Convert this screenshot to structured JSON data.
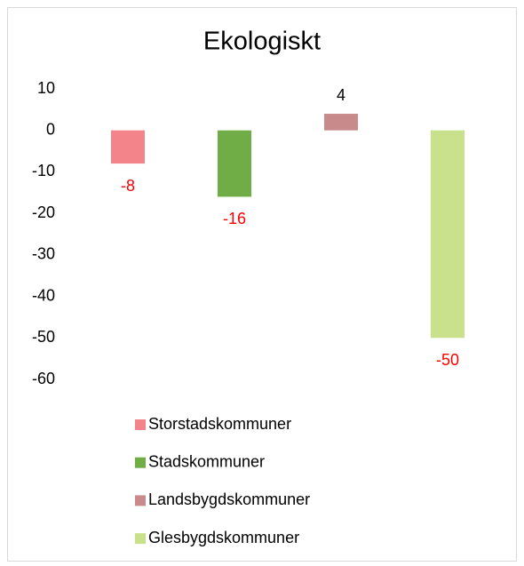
{
  "chart_data": {
    "type": "bar",
    "title": "Ekologiskt",
    "categories": [
      null
    ],
    "series": [
      {
        "name": "Storstadskommuner",
        "color": "#f2848a",
        "values": [
          -8
        ]
      },
      {
        "name": "Stadskommuner",
        "color": "#70ad47",
        "values": [
          -16
        ]
      },
      {
        "name": "Landsbygdskommuner",
        "color": "#c98a8c",
        "values": [
          4
        ]
      },
      {
        "name": "Glesbygdskommuner",
        "color": "#c9e18b",
        "values": [
          -50
        ]
      }
    ],
    "ylim": [
      -60,
      10
    ],
    "yticks": [
      -60,
      -50,
      -40,
      -30,
      -20,
      -10,
      0,
      10
    ],
    "grid": false,
    "legend": "bottom",
    "negative_label_color": "#ff0000"
  }
}
